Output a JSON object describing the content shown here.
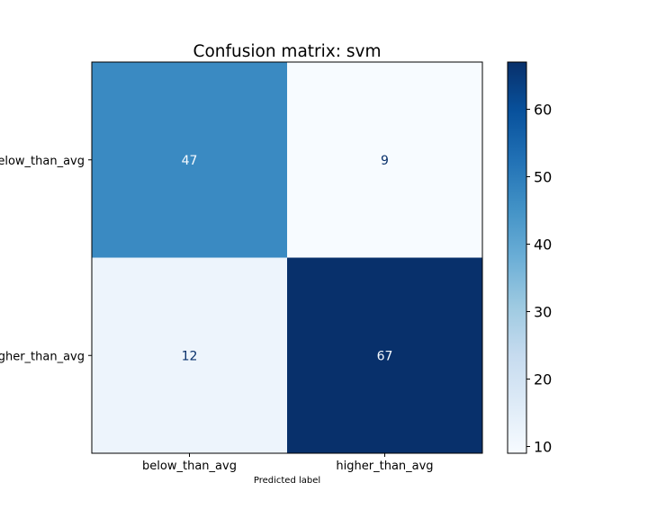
{
  "chart_data": {
    "type": "heatmap",
    "title": "Confusion matrix: svm",
    "xlabel": "Predicted label",
    "ylabel": "",
    "x_categories": [
      "below_than_avg",
      "higher_than_avg"
    ],
    "y_categories": [
      "below_than_avg",
      "higher_than_avg"
    ],
    "matrix": [
      [
        47,
        9
      ],
      [
        12,
        67
      ]
    ],
    "colormap": "Blues",
    "colorbar": {
      "min": 9,
      "max": 67,
      "ticks": [
        10,
        20,
        30,
        40,
        50,
        60
      ]
    },
    "grid": false
  }
}
